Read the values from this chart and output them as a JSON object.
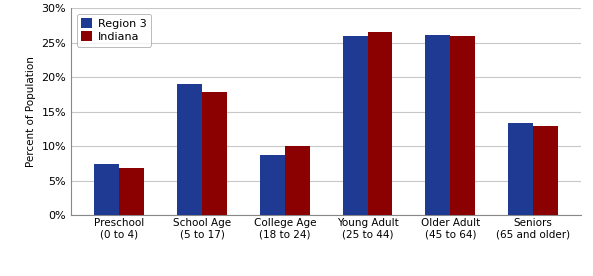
{
  "categories": [
    "Preschool\n(0 to 4)",
    "School Age\n(5 to 17)",
    "College Age\n(18 to 24)",
    "Young Adult\n(25 to 44)",
    "Older Adult\n(45 to 64)",
    "Seniors\n(65 and older)"
  ],
  "region3": [
    0.075,
    0.19,
    0.088,
    0.26,
    0.262,
    0.134
  ],
  "indiana": [
    0.069,
    0.178,
    0.1,
    0.265,
    0.26,
    0.13
  ],
  "region3_color": "#1F3A93",
  "indiana_color": "#8B0000",
  "legend_labels": [
    "Region 3",
    "Indiana"
  ],
  "ylabel": "Percent of Population",
  "ylim": [
    0,
    0.3
  ],
  "yticks": [
    0,
    0.05,
    0.1,
    0.15,
    0.2,
    0.25,
    0.3
  ],
  "bar_width": 0.3,
  "background_color": "#ffffff",
  "grid_color": "#c8c8c8"
}
